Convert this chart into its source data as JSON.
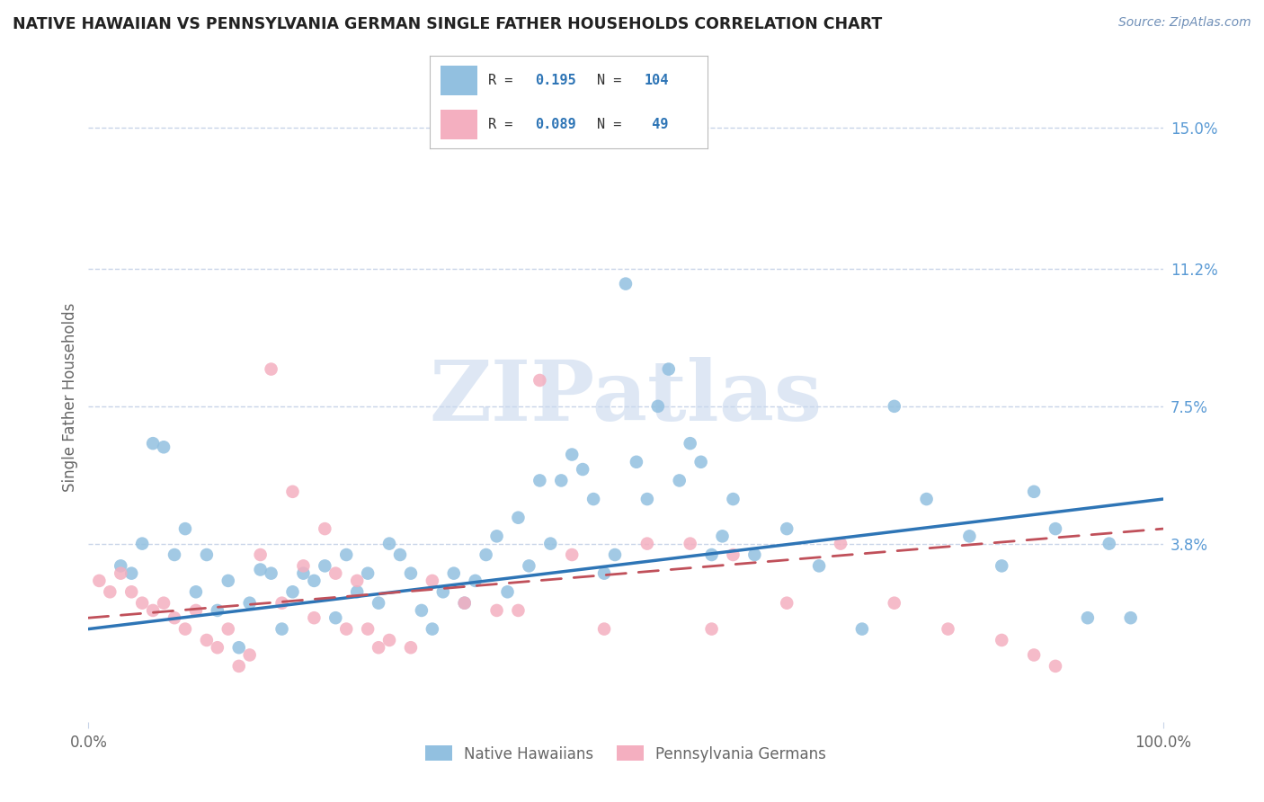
{
  "title": "NATIVE HAWAIIAN VS PENNSYLVANIA GERMAN SINGLE FATHER HOUSEHOLDS CORRELATION CHART",
  "source": "Source: ZipAtlas.com",
  "ylabel": "Single Father Households",
  "xlim": [
    0,
    100
  ],
  "ylim": [
    -1.0,
    16.5
  ],
  "yticks": [
    3.8,
    7.5,
    11.2,
    15.0
  ],
  "ytick_labels": [
    "3.8%",
    "7.5%",
    "11.2%",
    "15.0%"
  ],
  "blue_color": "#92c0e0",
  "pink_color": "#f4afc0",
  "blue_line_color": "#2e75b6",
  "pink_line_color": "#c0505a",
  "series1_label": "Native Hawaiians",
  "series2_label": "Pennsylvania Germans",
  "watermark": "ZIPatlas",
  "blue_scatter_x": [
    3,
    4,
    5,
    6,
    7,
    8,
    9,
    10,
    11,
    12,
    13,
    14,
    15,
    16,
    17,
    18,
    19,
    20,
    21,
    22,
    23,
    24,
    25,
    26,
    27,
    28,
    29,
    30,
    31,
    32,
    33,
    34,
    35,
    36,
    37,
    38,
    39,
    40,
    41,
    42,
    43,
    44,
    45,
    46,
    47,
    48,
    49,
    50,
    51,
    52,
    53,
    54,
    55,
    56,
    57,
    58,
    59,
    60,
    62,
    65,
    68,
    72,
    75,
    78,
    82,
    85,
    88,
    90,
    93,
    95,
    97
  ],
  "blue_scatter_y": [
    3.2,
    3.0,
    3.8,
    6.5,
    6.4,
    3.5,
    4.2,
    2.5,
    3.5,
    2.0,
    2.8,
    1.0,
    2.2,
    3.1,
    3.0,
    1.5,
    2.5,
    3.0,
    2.8,
    3.2,
    1.8,
    3.5,
    2.5,
    3.0,
    2.2,
    3.8,
    3.5,
    3.0,
    2.0,
    1.5,
    2.5,
    3.0,
    2.2,
    2.8,
    3.5,
    4.0,
    2.5,
    4.5,
    3.2,
    5.5,
    3.8,
    5.5,
    6.2,
    5.8,
    5.0,
    3.0,
    3.5,
    10.8,
    6.0,
    5.0,
    7.5,
    8.5,
    5.5,
    6.5,
    6.0,
    3.5,
    4.0,
    5.0,
    3.5,
    4.2,
    3.2,
    1.5,
    7.5,
    5.0,
    4.0,
    3.2,
    5.2,
    4.2,
    1.8,
    3.8,
    1.8
  ],
  "pink_scatter_x": [
    1,
    2,
    3,
    4,
    5,
    6,
    7,
    8,
    9,
    10,
    11,
    12,
    13,
    14,
    15,
    16,
    17,
    18,
    19,
    20,
    21,
    22,
    23,
    24,
    25,
    26,
    27,
    28,
    30,
    32,
    35,
    38,
    40,
    42,
    45,
    48,
    52,
    56,
    58,
    60,
    65,
    70,
    75,
    80,
    85,
    88,
    90
  ],
  "pink_scatter_y": [
    2.8,
    2.5,
    3.0,
    2.5,
    2.2,
    2.0,
    2.2,
    1.8,
    1.5,
    2.0,
    1.2,
    1.0,
    1.5,
    0.5,
    0.8,
    3.5,
    8.5,
    2.2,
    5.2,
    3.2,
    1.8,
    4.2,
    3.0,
    1.5,
    2.8,
    1.5,
    1.0,
    1.2,
    1.0,
    2.8,
    2.2,
    2.0,
    2.0,
    8.2,
    3.5,
    1.5,
    3.8,
    3.8,
    1.5,
    3.5,
    2.2,
    3.8,
    2.2,
    1.5,
    1.2,
    0.8,
    0.5
  ],
  "blue_line_x": [
    0,
    100
  ],
  "blue_line_y": [
    1.5,
    5.0
  ],
  "pink_line_x": [
    0,
    100
  ],
  "pink_line_y": [
    1.8,
    4.2
  ],
  "background_color": "#ffffff",
  "grid_color": "#c8d4e8",
  "title_color": "#222222",
  "axis_label_color": "#666666",
  "right_tick_color": "#5b9bd5",
  "watermark_color": "#c8d8ee",
  "source_color": "#7090b8"
}
